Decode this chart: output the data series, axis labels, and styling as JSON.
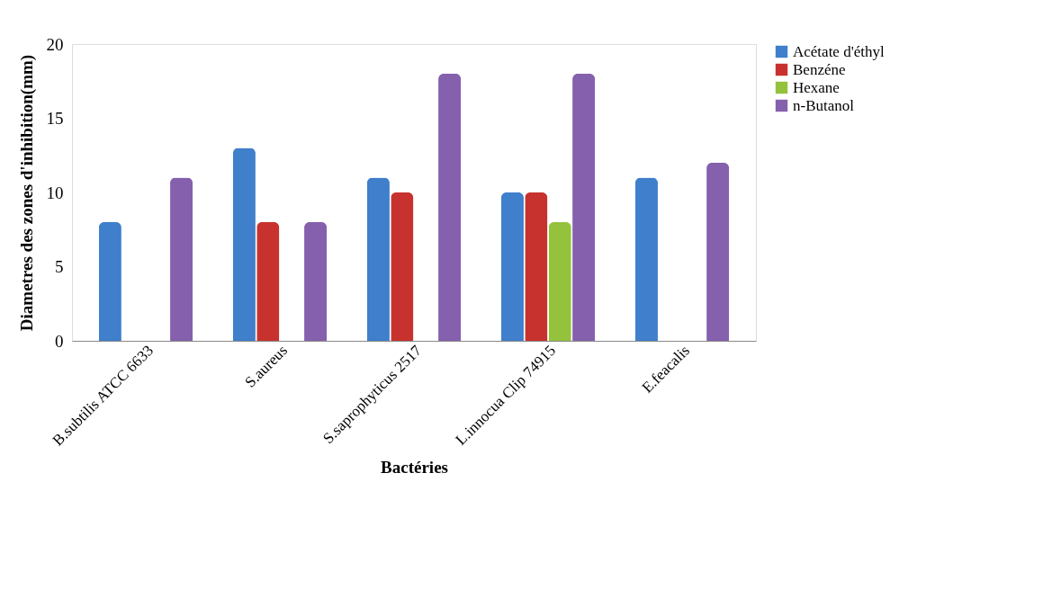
{
  "chart_data": {
    "type": "bar",
    "xlabel": "Bactéries",
    "ylabel": "Diametres des zones d'inhibition(mm)",
    "categories": [
      "B.subtilis ATCC 6633",
      "S.aureus",
      "S.saprophyticus 2517",
      "L.innocua Clip 74915",
      "E.feacalis"
    ],
    "series": [
      {
        "name": "Acétate d'éthyl",
        "color": "#3f7fcb",
        "values": [
          8,
          13,
          11,
          10,
          11
        ]
      },
      {
        "name": "Benzéne",
        "color": "#c8322e",
        "values": [
          0,
          8,
          10,
          10,
          0
        ]
      },
      {
        "name": "Hexane",
        "color": "#94c23c",
        "values": [
          0,
          0,
          0,
          8,
          0
        ]
      },
      {
        "name": "n-Butanol",
        "color": "#8560ad",
        "values": [
          11,
          8,
          18,
          18,
          12
        ]
      }
    ],
    "ylim": [
      0,
      20
    ],
    "yticks": [
      0,
      5,
      10,
      15,
      20
    ],
    "grid": false,
    "legend": "top right"
  }
}
